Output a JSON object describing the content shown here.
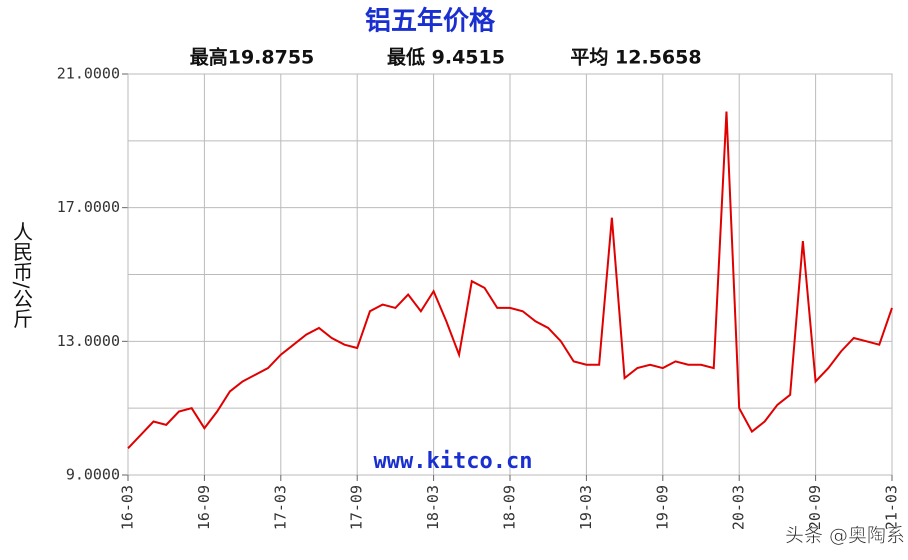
{
  "chart_data": {
    "type": "line",
    "title": "铝五年价格",
    "stats": [
      "最高19.8755",
      "最低 9.4515",
      "平均 12.5658"
    ],
    "ylabel": "人民币/公斤",
    "annotations": [
      "www.kitco.cn",
      "头条 @奥陶系"
    ],
    "x": [
      "16-03",
      "16-04",
      "16-05",
      "16-06",
      "16-07",
      "16-08",
      "16-09",
      "16-10",
      "16-11",
      "16-12",
      "17-01",
      "17-02",
      "17-03",
      "17-04",
      "17-05",
      "17-06",
      "17-07",
      "17-08",
      "17-09",
      "17-10",
      "17-11",
      "17-12",
      "18-01",
      "18-02",
      "18-03",
      "18-04",
      "18-05",
      "18-06",
      "18-07",
      "18-08",
      "18-09",
      "18-10",
      "18-11",
      "18-12",
      "19-01",
      "19-02",
      "19-03",
      "19-04",
      "19-05",
      "19-06",
      "19-07",
      "19-08",
      "19-09",
      "19-10",
      "19-11",
      "19-12",
      "20-01",
      "20-02",
      "20-03",
      "20-04",
      "20-05",
      "20-06",
      "20-07",
      "20-08",
      "20-09",
      "20-10",
      "20-11",
      "20-12",
      "21-01",
      "21-02",
      "21-03"
    ],
    "series": [
      {
        "name": "铝",
        "color": "#e00000",
        "values": [
          9.8,
          10.2,
          10.6,
          10.5,
          10.9,
          11.0,
          10.4,
          10.9,
          11.5,
          11.8,
          12.0,
          12.2,
          12.6,
          12.9,
          13.2,
          13.4,
          13.1,
          12.9,
          12.8,
          13.9,
          14.1,
          14.0,
          14.4,
          13.9,
          14.5,
          13.6,
          12.6,
          14.8,
          14.6,
          14.0,
          14.0,
          13.9,
          13.6,
          13.4,
          13.0,
          12.4,
          12.3,
          12.3,
          16.7,
          11.9,
          12.2,
          12.3,
          12.2,
          12.4,
          12.3,
          12.3,
          12.2,
          19.8755,
          11.0,
          10.3,
          10.6,
          11.1,
          11.4,
          16.0,
          11.8,
          12.2,
          12.7,
          13.1,
          13.0,
          12.9,
          14.0
        ]
      }
    ],
    "xticks": [
      "16-03",
      "16-09",
      "17-03",
      "17-09",
      "18-03",
      "18-09",
      "19-03",
      "19-09",
      "20-03",
      "20-09",
      "21-03"
    ],
    "ylim": [
      9,
      21
    ],
    "yticks": [
      {
        "value": 9,
        "label": "9.0000"
      },
      {
        "value": 13,
        "label": "13.0000"
      },
      {
        "value": 17,
        "label": "17.0000"
      },
      {
        "value": 21,
        "label": "21.0000"
      }
    ],
    "ygrid_minor": [
      11,
      15,
      19
    ],
    "grid": true
  }
}
